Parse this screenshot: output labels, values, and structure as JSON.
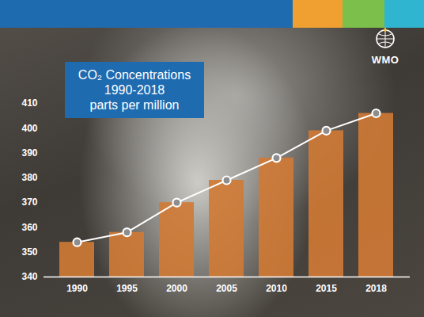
{
  "chart_data": {
    "type": "bar",
    "title": "CO₂ Concentrations 1990-2018",
    "subtitle": "parts per million",
    "logo_text": "WMO",
    "categories": [
      "1990",
      "1995",
      "2000",
      "2005",
      "2010",
      "2015",
      "2018"
    ],
    "series": [
      {
        "type": "bar",
        "color": "#d07a35",
        "values": [
          354,
          358,
          370,
          379,
          388,
          399,
          406
        ]
      },
      {
        "type": "line",
        "color": "#ffffff",
        "marker": "circle",
        "values": [
          354,
          358,
          370,
          379,
          388,
          399,
          406
        ]
      }
    ],
    "ylim": [
      340,
      410
    ],
    "yticks": [
      340,
      350,
      360,
      370,
      380,
      390,
      400,
      410
    ],
    "grid": false
  }
}
